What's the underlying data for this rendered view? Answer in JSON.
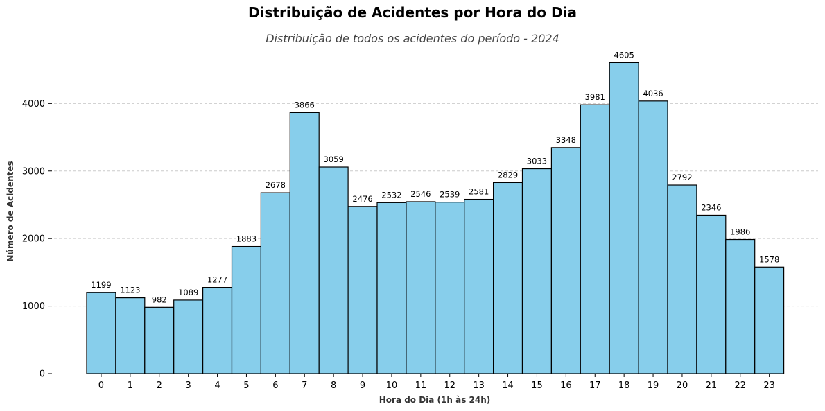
{
  "chart_data": {
    "type": "bar",
    "title": "Distribuição de Acidentes por Hora do Dia",
    "subtitle": "Distribuição de todos os acidentes do período - 2024",
    "xlabel": "Hora do Dia (1h às 24h)",
    "ylabel": "Número de Acidentes",
    "categories": [
      "0",
      "1",
      "2",
      "3",
      "4",
      "5",
      "6",
      "7",
      "8",
      "9",
      "10",
      "11",
      "12",
      "13",
      "14",
      "15",
      "16",
      "17",
      "18",
      "19",
      "20",
      "21",
      "22",
      "23"
    ],
    "values": [
      1199,
      1123,
      982,
      1089,
      1277,
      1883,
      2678,
      3866,
      3059,
      2476,
      2532,
      2546,
      2539,
      2581,
      2829,
      3033,
      3348,
      3981,
      4605,
      4036,
      2792,
      2346,
      1986,
      1578
    ],
    "yticks": [
      0,
      1000,
      2000,
      3000,
      4000
    ],
    "ylim": [
      0,
      4835
    ],
    "grid": "horizontal dashed",
    "bar_color": "#87CEEB",
    "edge_color": "#000000"
  }
}
